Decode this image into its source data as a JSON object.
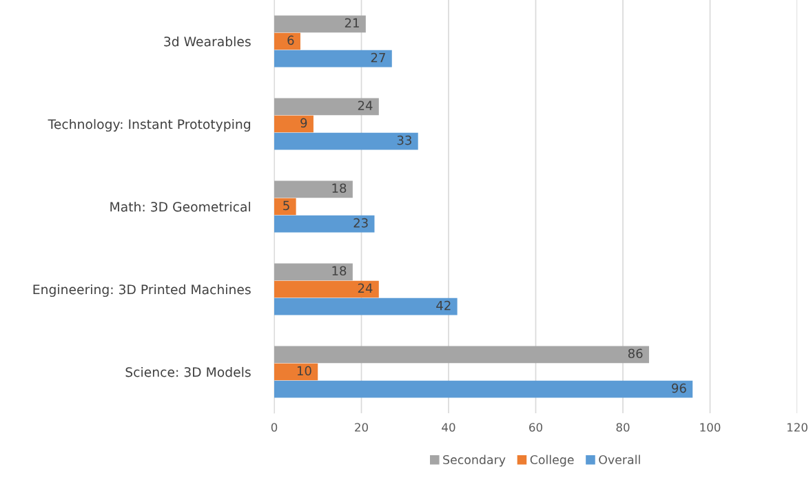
{
  "chart_data": {
    "type": "bar",
    "orientation": "horizontal",
    "categories": [
      "3d Wearables",
      "Technology: Instant Prototyping",
      "Math: 3D Geometrical",
      "Engineering: 3D Printed Machines",
      "Science: 3D Models"
    ],
    "series": [
      {
        "name": "Secondary",
        "color": "#a5a5a5",
        "values": [
          21,
          24,
          18,
          18,
          86
        ]
      },
      {
        "name": "College",
        "color": "#ed7d31",
        "values": [
          6,
          9,
          5,
          24,
          10
        ]
      },
      {
        "name": "Overall",
        "color": "#5b9bd5",
        "values": [
          27,
          33,
          23,
          42,
          96
        ]
      }
    ],
    "xlim": [
      0,
      120
    ],
    "xticks": [
      0,
      20,
      40,
      60,
      80,
      100,
      120
    ],
    "grid": "x",
    "legend": "bottom",
    "data_labels": true
  }
}
